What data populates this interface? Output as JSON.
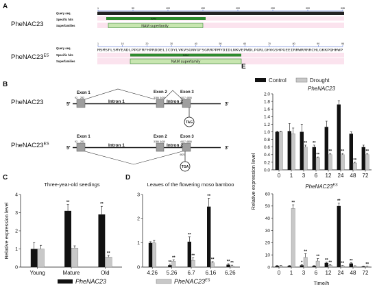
{
  "colors": {
    "black_bar": "#111111",
    "gray_bar": "#c8c8c8",
    "nam_green": "#2e8b2e",
    "nam_light": "#c8e6b0",
    "hits_pink": "#fbe3ee",
    "seq_blue": "#3355cc",
    "exon_gray": "#9e9e9e"
  },
  "panel_a": {
    "letter": "A",
    "genes": [
      {
        "name": "PheNAC23",
        "rows": [
          "Query seq.",
          "Specific hits",
          "Superfamilies"
        ],
        "ticks": [
          "1",
          "50",
          "100",
          "150",
          "200",
          "250",
          "300",
          "336"
        ],
        "specific_label": "NAM",
        "super_label": "NAM superfamily",
        "sequence": ""
      },
      {
        "name": "PheNAC23",
        "sup": "ES",
        "rows": [
          "Query seq.",
          "Specific hits",
          "Superfamilies"
        ],
        "ticks": [
          "1",
          "10",
          "20",
          "30",
          "40",
          "50",
          "60",
          "70",
          "80",
          "90",
          "96"
        ],
        "specific_label": "NAM",
        "super_label": "NAM superfamily",
        "sequence": "MSMSFLSMYEADLPPGFRFHPRDDELICDYLVKVSGNVGFSGRRPPMYDIDLNKVEPWDLPGRLGHVGSHPGEEIRRWRRRRCHLGKKPQHHWP"
      }
    ]
  },
  "panel_b": {
    "letter": "B",
    "genes": [
      {
        "name": "PheNAC23",
        "five": "5'",
        "three": "3'",
        "exons": [
          "Exon 1",
          "Exon 2",
          "Exon 3"
        ],
        "introns": [
          "Intron 1",
          "Intron 2"
        ],
        "coords": [
          "92",
          "282",
          "3186",
          "3430",
          "4417",
          "4806"
        ],
        "stop": "TAG"
      },
      {
        "name": "PheNAC23",
        "sup": "ES",
        "five": "5'",
        "three": "3'",
        "exons": [
          "Exon 1",
          "Exon 2",
          "Exon 3"
        ],
        "introns": [
          "Intron 1",
          "Intron 2"
        ],
        "coords": [
          "92",
          "282",
          "3186",
          "3430",
          "4417",
          "4806"
        ],
        "extra_coord": "4621",
        "stop": "TGA"
      }
    ]
  },
  "legend_ce": {
    "items": [
      "Control",
      "Drought"
    ]
  },
  "legend_cd": {
    "items": [
      {
        "name": "PheNAC23"
      },
      {
        "name": "PheNAC23",
        "sup": "ES"
      }
    ]
  },
  "chart_data": [
    {
      "panel": "C",
      "type": "bar",
      "title": "Three-year-old seedings",
      "ylabel": "Relative expression level",
      "xlabel": "",
      "categories": [
        "Young",
        "Mature",
        "Old"
      ],
      "ylim": [
        0,
        4
      ],
      "yticks": [
        "0",
        "1",
        "2",
        "3",
        "4"
      ],
      "series": [
        {
          "values": [
            1.0,
            3.1,
            2.9
          ],
          "errors": [
            0.35,
            0.35,
            0.45
          ],
          "stars": [
            "",
            "**",
            "**"
          ]
        },
        {
          "values": [
            1.0,
            1.05,
            0.55
          ],
          "errors": [
            0.2,
            0.12,
            0.1
          ],
          "stars": [
            "",
            "",
            "**"
          ]
        }
      ]
    },
    {
      "panel": "D",
      "type": "bar",
      "title": "Leaves of the flowering moso bamboo",
      "ylabel": "",
      "xlabel": "",
      "categories": [
        "4.26",
        "5.26",
        "6.7",
        "6.16",
        "6.26"
      ],
      "ylim": [
        0,
        3
      ],
      "yticks": [
        "0",
        "1",
        "2",
        "3"
      ],
      "series": [
        {
          "values": [
            1.0,
            0.08,
            1.05,
            2.5,
            0.1
          ],
          "errors": [
            0.05,
            0.04,
            0.2,
            0.35,
            0.04
          ],
          "stars": [
            "",
            "**",
            "**",
            "**",
            "**"
          ]
        },
        {
          "values": [
            1.0,
            0.25,
            0.28,
            0.18,
            0.05
          ],
          "errors": [
            0.1,
            0.05,
            0.1,
            0.05,
            0.03
          ],
          "stars": [
            "",
            "**",
            "**",
            "**",
            "**"
          ]
        }
      ]
    },
    {
      "panel": "E",
      "type": "bar",
      "title": "PheNAC23",
      "ylabel": "Relative expression level",
      "xlabel": "",
      "categories": [
        "0",
        "1",
        "3",
        "6",
        "12",
        "24",
        "48",
        "72"
      ],
      "ylim": [
        0,
        2.0
      ],
      "yticks": [
        "0.0",
        "0.2",
        "0.4",
        "0.6",
        "0.8",
        "1.0",
        "1.2",
        "1.4",
        "1.6",
        "1.8",
        "2.0"
      ],
      "series": [
        {
          "values": [
            1.0,
            1.02,
            1.0,
            0.6,
            1.13,
            1.72,
            0.95,
            0.6
          ],
          "errors": [
            0.02,
            0.2,
            0.2,
            0.05,
            0.15,
            0.1,
            0.05,
            0.05
          ],
          "stars": [
            "",
            "",
            "",
            "**",
            "",
            "",
            "",
            ""
          ]
        },
        {
          "values": [
            1.0,
            0.95,
            0.6,
            0.32,
            0.4,
            0.4,
            0.18,
            0.4
          ],
          "errors": [
            0.02,
            0.15,
            0.05,
            0.02,
            0.03,
            0.03,
            0.02,
            0.03
          ],
          "stars": [
            "",
            "",
            "**",
            "**",
            "**",
            "**",
            "**",
            "**"
          ]
        }
      ]
    },
    {
      "panel": "E2",
      "type": "bar",
      "title": "PheNAC23",
      "title_sup": "ES",
      "ylabel": "",
      "xlabel": "Time/h",
      "categories": [
        "0",
        "1",
        "3",
        "6",
        "12",
        "24",
        "48",
        "72"
      ],
      "ylim": [
        0,
        60
      ],
      "yticks": [
        "0",
        "10",
        "20",
        "30",
        "40",
        "50",
        "60"
      ],
      "series": [
        {
          "values": [
            1.0,
            1.0,
            1.5,
            1.0,
            3.5,
            50,
            3.0,
            0.5
          ],
          "errors": [
            0.3,
            0.3,
            0.5,
            0.2,
            0.5,
            2.5,
            0.5,
            0.2
          ],
          "stars": [
            "",
            "",
            "*",
            "",
            "**",
            "**",
            "**",
            ""
          ]
        },
        {
          "values": [
            1.0,
            48,
            8,
            5,
            1.5,
            1.0,
            0.8,
            0.5
          ],
          "errors": [
            0.3,
            3,
            3,
            2,
            0.5,
            0.3,
            0.3,
            0.2
          ],
          "stars": [
            "",
            "**",
            "**",
            "**",
            "**",
            "**",
            "",
            "**"
          ]
        }
      ]
    }
  ]
}
